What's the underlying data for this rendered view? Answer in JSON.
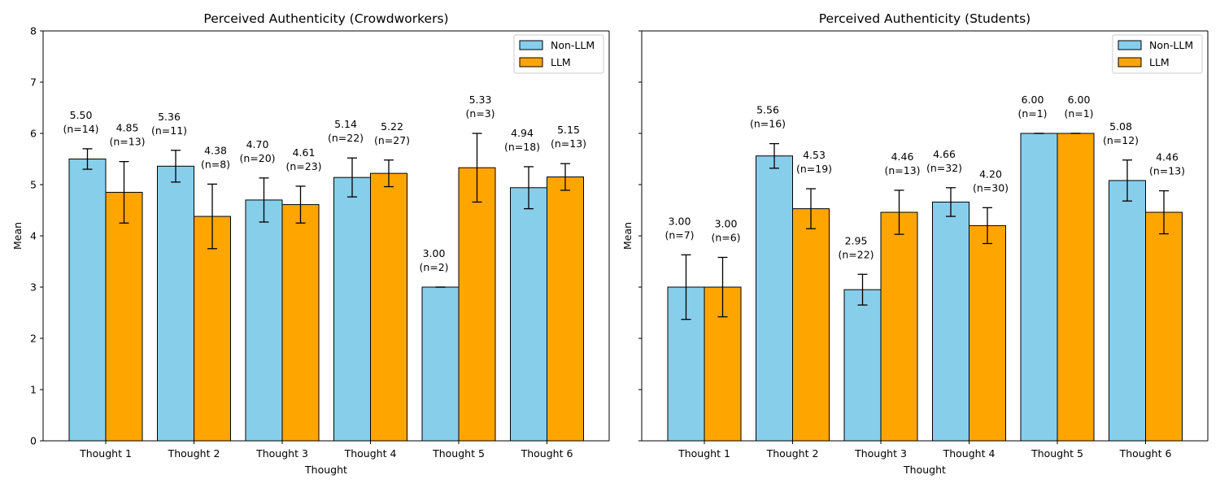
{
  "colors": {
    "nonllm": "#87ceeb",
    "llm": "#ffa500",
    "edge": "#000000",
    "background": "#ffffff"
  },
  "chart_data": [
    {
      "type": "bar",
      "title": "Perceived Authenticity (Crowdworkers)",
      "xlabel": "Thought",
      "ylabel": "Mean",
      "ylim": [
        0,
        8
      ],
      "yticks": [
        "0",
        "1",
        "2",
        "3",
        "4",
        "5",
        "6",
        "7",
        "8"
      ],
      "grid": false,
      "legend": {
        "position": "upper right",
        "entries": [
          "Non-LLM",
          "LLM"
        ]
      },
      "categories": [
        "Thought 1",
        "Thought 2",
        "Thought 3",
        "Thought 4",
        "Thought 5",
        "Thought 6"
      ],
      "series": [
        {
          "name": "Non-LLM",
          "color": "#87ceeb",
          "values": [
            5.5,
            5.36,
            4.7,
            5.14,
            3.0,
            4.94
          ],
          "err": [
            0.2,
            0.31,
            0.43,
            0.38,
            0.0,
            0.41
          ],
          "n": [
            14,
            11,
            20,
            22,
            2,
            18
          ],
          "labels": [
            "5.50",
            "5.36",
            "4.70",
            "5.14",
            "3.00",
            "4.94"
          ],
          "n_labels": [
            "(n=14)",
            "(n=11)",
            "(n=20)",
            "(n=22)",
            "(n=2)",
            "(n=18)"
          ]
        },
        {
          "name": "LLM",
          "color": "#ffa500",
          "values": [
            4.85,
            4.38,
            4.61,
            5.22,
            5.33,
            5.15
          ],
          "err": [
            0.6,
            0.63,
            0.36,
            0.26,
            0.67,
            0.26
          ],
          "n": [
            13,
            8,
            23,
            27,
            3,
            13
          ],
          "labels": [
            "4.85",
            "4.38",
            "4.61",
            "5.22",
            "5.33",
            "5.15"
          ],
          "n_labels": [
            "(n=13)",
            "(n=8)",
            "(n=23)",
            "(n=27)",
            "(n=3)",
            "(n=13)"
          ]
        }
      ]
    },
    {
      "type": "bar",
      "title": "Perceived Authenticity (Students)",
      "xlabel": "Thought",
      "ylabel": "Mean",
      "ylim": [
        0,
        8
      ],
      "yticks": [
        "0",
        "1",
        "2",
        "3",
        "4",
        "5",
        "6",
        "7",
        "8"
      ],
      "grid": false,
      "legend": {
        "position": "upper right",
        "entries": [
          "Non-LLM",
          "LLM"
        ]
      },
      "categories": [
        "Thought 1",
        "Thought 2",
        "Thought 3",
        "Thought 4",
        "Thought 5",
        "Thought 6"
      ],
      "series": [
        {
          "name": "Non-LLM",
          "color": "#87ceeb",
          "values": [
            3.0,
            5.56,
            2.95,
            4.66,
            6.0,
            5.08
          ],
          "err": [
            0.63,
            0.24,
            0.3,
            0.28,
            0.0,
            0.4
          ],
          "n": [
            7,
            16,
            22,
            32,
            1,
            12
          ],
          "labels": [
            "3.00",
            "5.56",
            "2.95",
            "4.66",
            "6.00",
            "5.08"
          ],
          "n_labels": [
            "(n=7)",
            "(n=16)",
            "(n=22)",
            "(n=32)",
            "(n=1)",
            "(n=12)"
          ]
        },
        {
          "name": "LLM",
          "color": "#ffa500",
          "values": [
            3.0,
            4.53,
            4.46,
            4.2,
            6.0,
            4.46
          ],
          "err": [
            0.58,
            0.39,
            0.43,
            0.35,
            0.0,
            0.42
          ],
          "n": [
            6,
            19,
            13,
            30,
            1,
            13
          ],
          "labels": [
            "3.00",
            "4.53",
            "4.46",
            "4.20",
            "6.00",
            "4.46"
          ],
          "n_labels": [
            "(n=6)",
            "(n=19)",
            "(n=13)",
            "(n=30)",
            "(n=1)",
            "(n=13)"
          ]
        }
      ]
    }
  ]
}
